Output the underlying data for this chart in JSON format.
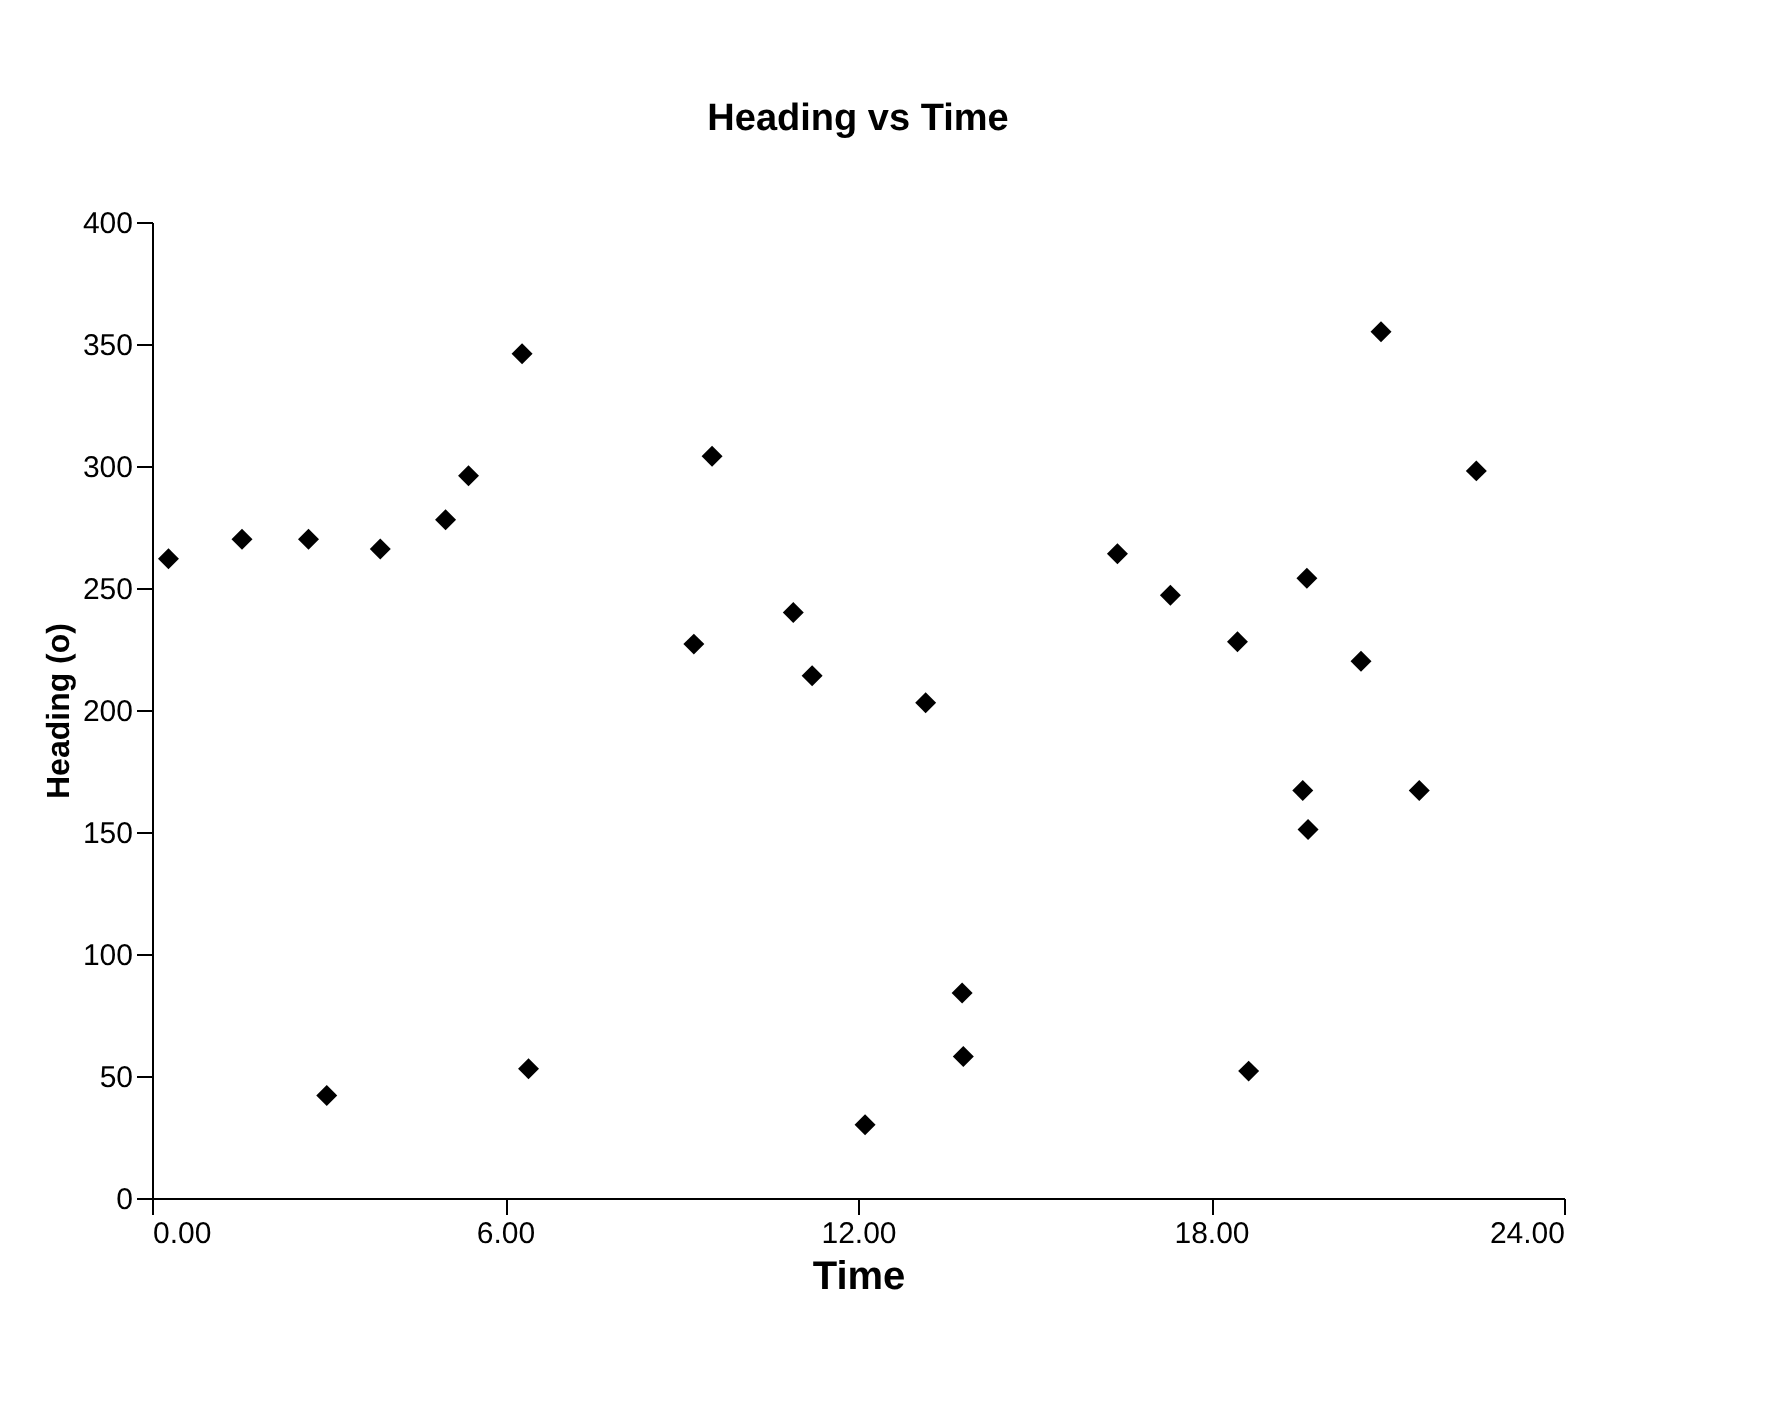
{
  "chart_data": {
    "type": "scatter",
    "title": "Heading vs Time",
    "xlabel": "Time",
    "ylabel": "Heading (o)",
    "x": [
      0.28,
      1.53,
      2.66,
      3.88,
      4.99,
      5.38,
      6.29,
      2.97,
      6.4,
      9.21,
      9.52,
      10.9,
      11.22,
      13.15,
      12.12,
      13.77,
      13.79,
      16.41,
      17.31,
      18.45,
      18.64,
      19.63,
      19.56,
      19.65,
      20.55,
      20.89,
      21.54,
      22.51
    ],
    "values": [
      262,
      270,
      270,
      266,
      278,
      296,
      346,
      42,
      53,
      227,
      304,
      240,
      214,
      203,
      30,
      84,
      58,
      264,
      247,
      228,
      52,
      254,
      167,
      151,
      220,
      355,
      167,
      298
    ],
    "color": "#000000",
    "marker": "diamond",
    "grid": false,
    "xlim": [
      0,
      24
    ],
    "xticks": [
      {
        "value": 0,
        "label": "0.00"
      },
      {
        "value": 6,
        "label": "6.00"
      },
      {
        "value": 12,
        "label": "12.00"
      },
      {
        "value": 18,
        "label": "18.00"
      },
      {
        "value": 24,
        "label": "24.00"
      }
    ],
    "ylim": [
      0,
      400
    ],
    "yticks": [
      0,
      50,
      100,
      150,
      200,
      250,
      300,
      350,
      400
    ]
  }
}
